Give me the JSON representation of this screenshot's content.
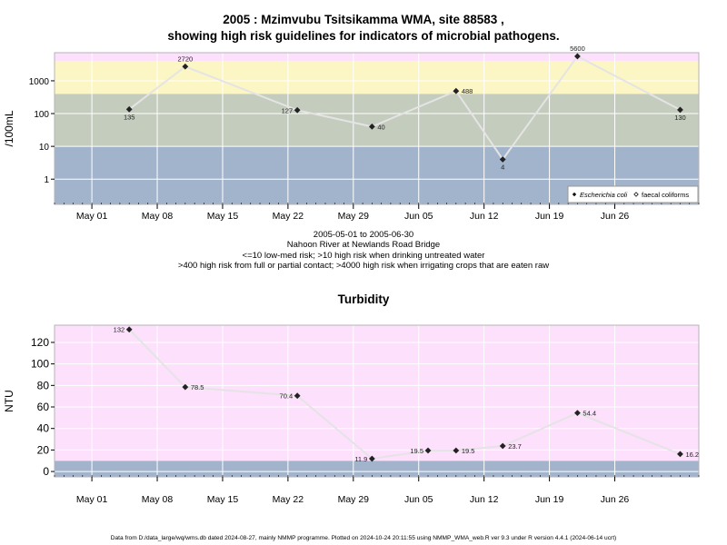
{
  "title": {
    "line1": "2005 : Mzimvubu Tsitsikamma WMA, site 88583 ,",
    "line2": "showing high risk guidelines for indicators of microbial pathogens."
  },
  "subtitle": {
    "period": "2005-05-01 to 2005-06-30",
    "location": "Nahoon River at Newlands Road Bridge",
    "guideline1": "<=10 low-med risk; >10 high risk when drinking untreated water",
    "guideline2": ">400 high risk from full or partial contact; >4000 high risk when irrigating crops that are eaten raw"
  },
  "footer": "Data from D:/data_large/wq/wms.db dated 2024-08-27, mainly NMMP programme. Plotted on 2024-10-24 20:11:55 using NMMP_WMA_web.R ver 9.3 under R version 4.4.1 (2024-06-14 ucrt)",
  "colors": {
    "band_blue": "#a2b4cc",
    "band_green": "#c4ccbe",
    "band_yellow": "#fcf6c4",
    "band_pink": "#fce0fc",
    "line": "#e4e4e4",
    "point": "#222222"
  },
  "chart_data": [
    {
      "type": "line",
      "scale": "log",
      "ylabel": "/100mL",
      "yticks": [
        1,
        10,
        100,
        1000
      ],
      "ytick_labels": [
        "1",
        "10",
        "100",
        "1000"
      ],
      "ylim": [
        0.17,
        7200
      ],
      "xlim": [
        "2005-04-27",
        "2005-07-05"
      ],
      "xticks": [
        "2005-05-01",
        "2005-05-08",
        "2005-05-15",
        "2005-05-22",
        "2005-05-29",
        "2005-06-05",
        "2005-06-12",
        "2005-06-19",
        "2005-06-26"
      ],
      "xtick_labels": [
        "May 01",
        "May 08",
        "May 15",
        "May 22",
        "May 29",
        "Jun 05",
        "Jun 12",
        "Jun 19",
        "Jun 26"
      ],
      "bands": [
        {
          "from": 0.17,
          "to": 10,
          "color": "band_blue"
        },
        {
          "from": 10,
          "to": 400,
          "color": "band_green"
        },
        {
          "from": 400,
          "to": 4000,
          "color": "band_yellow"
        },
        {
          "from": 4000,
          "to": 7200,
          "color": "band_pink"
        }
      ],
      "series": [
        {
          "name": "Escherichia coli",
          "marker": "diamond",
          "x": [
            "2005-05-05",
            "2005-05-11",
            "2005-05-23",
            "2005-05-31",
            "2005-06-09",
            "2005-06-14",
            "2005-06-22",
            "2005-07-03"
          ],
          "values": [
            135,
            2720,
            127,
            40,
            488,
            4,
            5600,
            130
          ],
          "labels": [
            "135",
            "2720",
            "127",
            "40",
            "488",
            "4",
            "5600",
            "130"
          ],
          "label_pos": [
            "below",
            "above",
            "left",
            "right",
            "right",
            "below",
            "above",
            "below"
          ]
        }
      ],
      "legend": {
        "placement": "bottom-right",
        "entries": [
          "Escherichia coli",
          "faecal coliforms"
        ]
      }
    },
    {
      "type": "line",
      "title": "Turbidity",
      "ylabel": "NTU",
      "yticks": [
        0,
        20,
        40,
        60,
        80,
        100,
        120
      ],
      "ytick_labels": [
        "0",
        "20",
        "40",
        "60",
        "80",
        "100",
        "120"
      ],
      "ylim": [
        -5,
        136
      ],
      "xlim": [
        "2005-04-27",
        "2005-07-05"
      ],
      "xticks": [
        "2005-05-01",
        "2005-05-08",
        "2005-05-15",
        "2005-05-22",
        "2005-05-29",
        "2005-06-05",
        "2005-06-12",
        "2005-06-19",
        "2005-06-26"
      ],
      "xtick_labels": [
        "May 01",
        "May 08",
        "May 15",
        "May 22",
        "May 29",
        "Jun 05",
        "Jun 12",
        "Jun 19",
        "Jun 26"
      ],
      "bands": [
        {
          "from": -5,
          "to": 10,
          "color": "band_blue"
        },
        {
          "from": 10,
          "to": 136,
          "color": "band_pink"
        }
      ],
      "series": [
        {
          "name": "",
          "marker": "diamond",
          "x": [
            "2005-05-05",
            "2005-05-11",
            "2005-05-23",
            "2005-05-31",
            "2005-06-06",
            "2005-06-09",
            "2005-06-14",
            "2005-06-22",
            "2005-07-03"
          ],
          "values": [
            132,
            78.5,
            70.4,
            11.9,
            19.5,
            19.5,
            23.7,
            54.4,
            16.2
          ],
          "labels": [
            "132",
            "78.5",
            "70.4",
            "11.9",
            "19.5",
            "19.5",
            "23.7",
            "54.4",
            "16.2"
          ],
          "label_pos": [
            "left",
            "right",
            "left",
            "left",
            "left",
            "right",
            "right",
            "right",
            "right"
          ]
        }
      ]
    }
  ]
}
